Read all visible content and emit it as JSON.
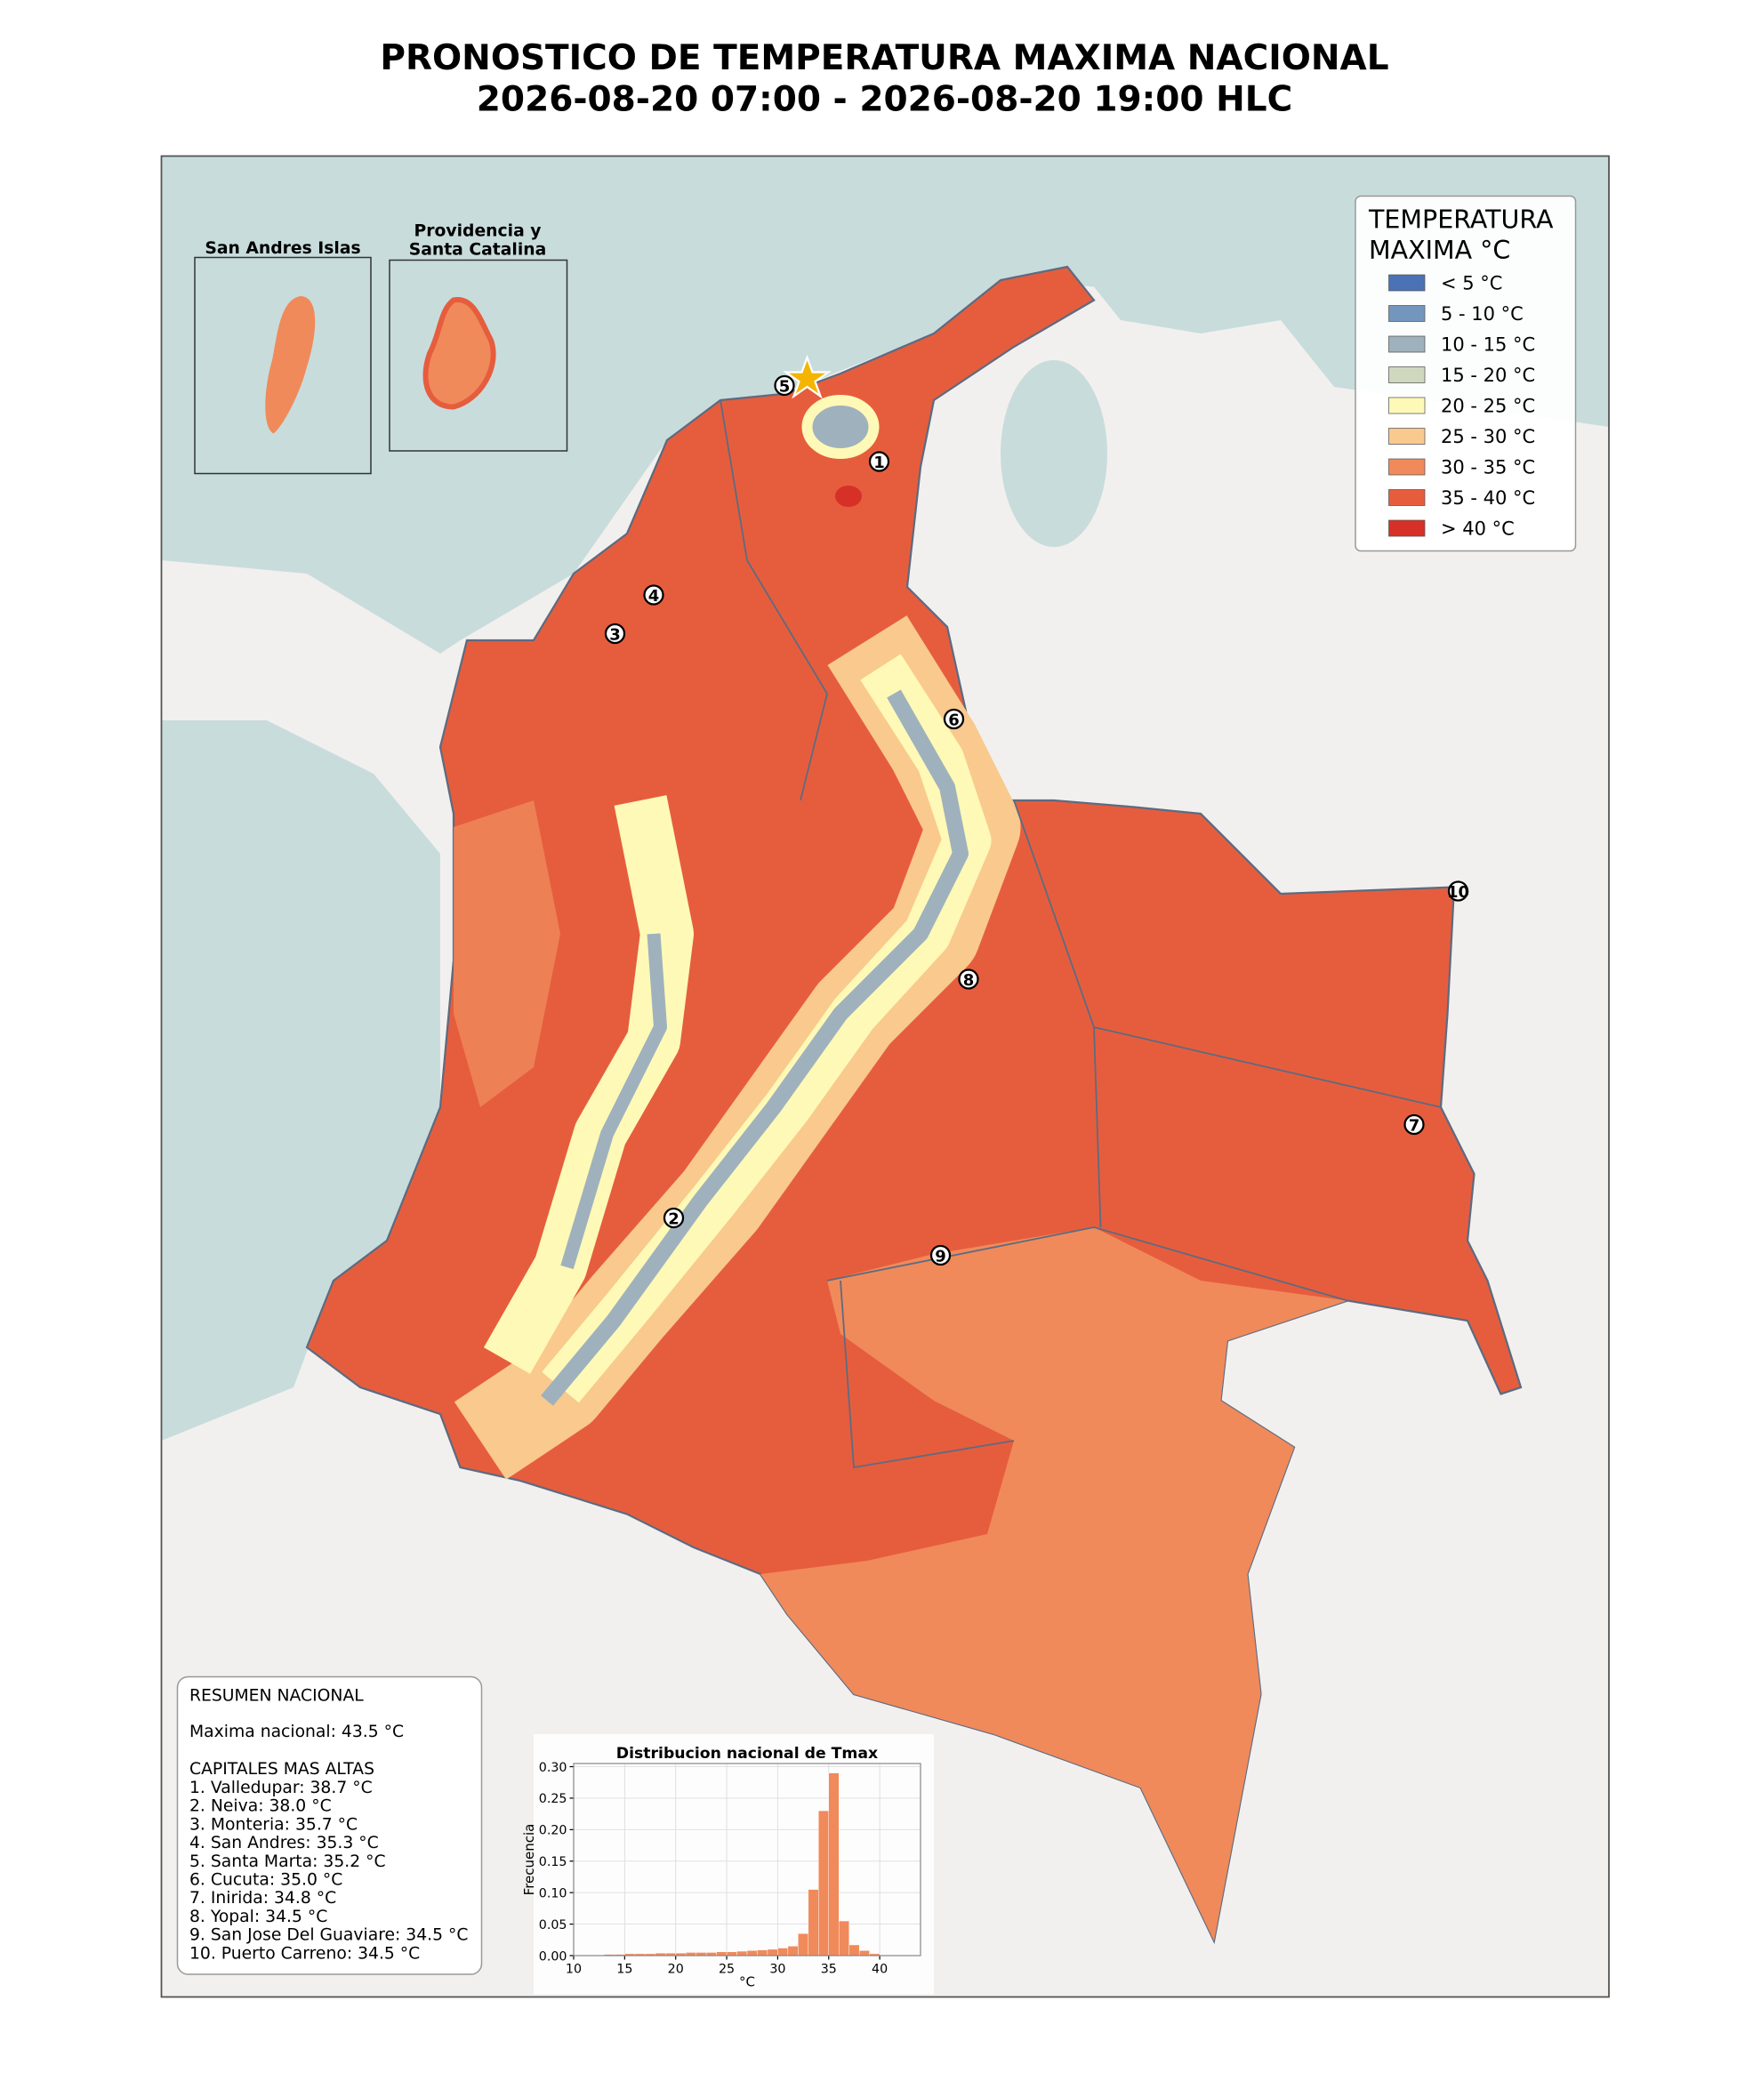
{
  "title": [
    "PRONOSTICO DE TEMPERATURA MAXIMA NACIONAL",
    "2026-08-20 07:00 - 2026-08-20 19:00 HLC"
  ],
  "legend": {
    "title": [
      "TEMPERATURA",
      "MAXIMA °C"
    ],
    "items": [
      {
        "label": "< 5 °C",
        "color": "#4a72b5"
      },
      {
        "label": "5 - 10 °C",
        "color": "#7496bd"
      },
      {
        "label": "10 - 15 °C",
        "color": "#9fb1bd"
      },
      {
        "label": "15 - 20 °C",
        "color": "#cfd7bf"
      },
      {
        "label": "20 - 25 °C",
        "color": "#fef9b6"
      },
      {
        "label": "25 - 30 °C",
        "color": "#f9c98e"
      },
      {
        "label": "30 - 35 °C",
        "color": "#f08a5b"
      },
      {
        "label": "35 - 40 °C",
        "color": "#e65d3e"
      },
      {
        "label": "> 40 °C",
        "color": "#d73027"
      }
    ]
  },
  "insets": [
    {
      "title": [
        "San Andres Islas"
      ]
    },
    {
      "title": [
        "Providencia y",
        "Santa Catalina"
      ]
    }
  ],
  "markers": [
    "1",
    "2",
    "3",
    "4",
    "5",
    "6",
    "7",
    "8",
    "9",
    "10"
  ],
  "summary": {
    "title": "RESUMEN NACIONAL",
    "max": "Maxima nacional: 43.5 °C",
    "heading": "CAPITALES MAS ALTAS",
    "capitals": [
      "1. Valledupar: 38.7 °C",
      "2. Neiva: 38.0 °C",
      "3. Monteria: 35.7 °C",
      "4. San Andres: 35.3 °C",
      "5. Santa Marta: 35.2 °C",
      "6. Cucuta: 35.0 °C",
      "7. Inirida: 34.8 °C",
      "8. Yopal: 34.5 °C",
      "9. San Jose Del Guaviare: 34.5 °C",
      "10. Puerto Carreno: 34.5 °C"
    ]
  },
  "chart_data": {
    "type": "histogram",
    "title": "Distribucion nacional de Tmax",
    "xlabel": "°C",
    "ylabel": "Frecuencia",
    "color": "#f08a5b",
    "bins": [
      10,
      11,
      12,
      13,
      14,
      15,
      16,
      17,
      18,
      19,
      20,
      21,
      22,
      23,
      24,
      25,
      26,
      27,
      28,
      29,
      30,
      31,
      32,
      33,
      34,
      35,
      36,
      37,
      38,
      39,
      40,
      41,
      42,
      43
    ],
    "values": [
      0.001,
      0.001,
      0.001,
      0.002,
      0.002,
      0.003,
      0.003,
      0.003,
      0.004,
      0.004,
      0.004,
      0.005,
      0.005,
      0.005,
      0.006,
      0.006,
      0.007,
      0.008,
      0.009,
      0.01,
      0.012,
      0.015,
      0.035,
      0.105,
      0.23,
      0.29,
      0.055,
      0.017,
      0.008,
      0.003,
      0.001,
      0.001,
      0.0005
    ],
    "xlim": [
      10,
      44
    ],
    "ylim": [
      0,
      0.305
    ],
    "xticks": [
      10,
      15,
      20,
      25,
      30,
      35,
      40
    ],
    "yticks": [
      {
        "value": 0,
        "label": "0.00"
      },
      {
        "value": 0.05,
        "label": "0.05"
      },
      {
        "value": 0.1,
        "label": "0.10"
      },
      {
        "value": 0.15,
        "label": "0.15"
      },
      {
        "value": 0.2,
        "label": "0.20"
      },
      {
        "value": 0.25,
        "label": "0.25"
      },
      {
        "value": 0.3,
        "label": "0.30"
      }
    ],
    "grid": true
  }
}
